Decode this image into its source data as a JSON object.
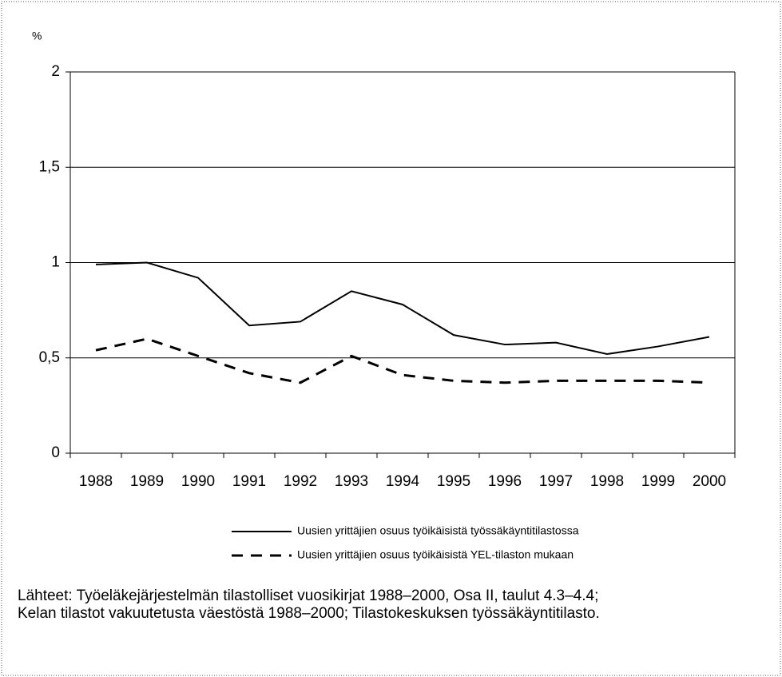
{
  "chart_data": {
    "type": "line",
    "y_label": "%",
    "categories": [
      "1988",
      "1989",
      "1990",
      "1991",
      "1992",
      "1993",
      "1994",
      "1995",
      "1996",
      "1997",
      "1998",
      "1999",
      "2000"
    ],
    "series": [
      {
        "name": "Uusien yrittäjien osuus työikäisistä työssäkäyntitilastossa",
        "color": "#000000",
        "dash": "solid",
        "values": [
          0.99,
          1.0,
          0.92,
          0.67,
          0.69,
          0.85,
          0.78,
          0.62,
          0.57,
          0.58,
          0.52,
          0.56,
          0.61
        ]
      },
      {
        "name": "Uusien yrittäjien osuus työikäisistä YEL-tilaston mukaan",
        "color": "#000000",
        "dash": "dashed",
        "values": [
          0.54,
          0.6,
          0.51,
          0.42,
          0.37,
          0.51,
          0.41,
          0.38,
          0.37,
          0.38,
          0.38,
          0.38,
          0.37
        ]
      }
    ],
    "ylim": [
      0,
      2
    ],
    "yticks": [
      0,
      {
        "value": 0.5,
        "label": "0,5"
      },
      1,
      {
        "value": 1.5,
        "label": "1,5"
      },
      2
    ],
    "grid": true,
    "legend": "bottom",
    "source": [
      "Lähteet: Työeläkejärjestelmän tilastolliset vuosikirjat 1988–2000, Osa II, taulut 4.3–4.4;",
      "Kelan tilastot vakuutetusta väestöstä 1988–2000; Tilastokeskuksen työssäkäyntitilasto."
    ]
  }
}
